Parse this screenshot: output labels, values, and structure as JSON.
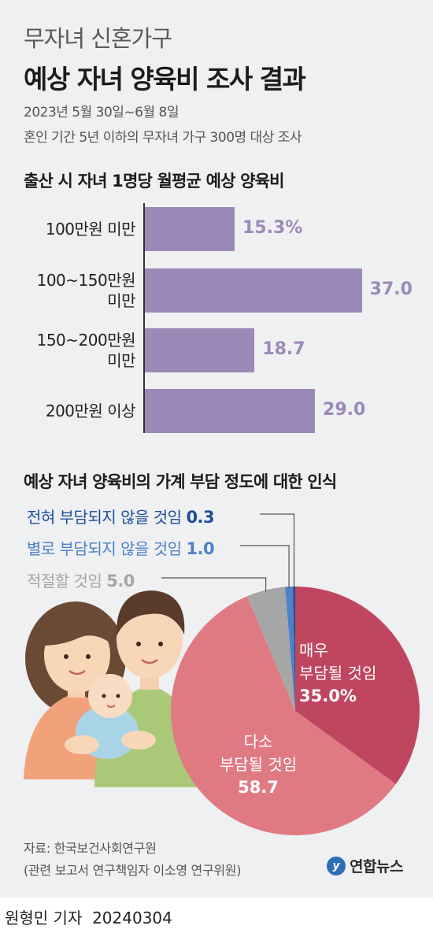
{
  "header": {
    "title_line1": "무자녀 신혼가구",
    "title_line2": "예상 자녀 양육비 조사 결과",
    "survey_period": "2023년 5월 30일~6월 8일",
    "survey_target": "혼인 기간 5년 이하의 무자녀 가구 300명 대상 조사"
  },
  "bar_section_title": "출산 시 자녀 1명당 월평균 예상 양육비",
  "pie_section_title": "예상 자녀 양육비의 가계 부담 정도에 대한 인식",
  "colors": {
    "bar": "#9c89b8",
    "pie_very": "#c0455e",
    "pie_some": "#e07a82",
    "pie_ok": "#a6a6a6",
    "pie_rarely": "#4f81c7",
    "pie_never": "#1f4e96",
    "background": "#eef0f2"
  },
  "chart_data": [
    {
      "type": "bar",
      "orientation": "horizontal",
      "title": "출산 시 자녀 1명당 월평균 예상 양육비",
      "categories": [
        [
          "100만원 미만"
        ],
        [
          "100~150만원",
          "미만"
        ],
        [
          "150~200만원",
          "미만"
        ],
        [
          "200만원 이상"
        ]
      ],
      "values": [
        15.3,
        37.0,
        18.7,
        29.0
      ],
      "value_labels": [
        "15.3%",
        "37.0",
        "18.7",
        "29.0"
      ],
      "unit": "%"
    },
    {
      "type": "pie",
      "title": "예상 자녀 양육비의 가계 부담 정도에 대한 인식",
      "slices": [
        {
          "label_lines": [
            "매우",
            "부담될 것임"
          ],
          "value": 35.0,
          "value_label": "35.0%"
        },
        {
          "label_lines": [
            "다소",
            "부담될 것임"
          ],
          "value": 58.7,
          "value_label": "58.7"
        },
        {
          "label": "적절할 것임",
          "value": 5.0,
          "value_label": "5.0"
        },
        {
          "label": "별로 부담되지 않을 것임",
          "value": 1.0,
          "value_label": "1.0"
        },
        {
          "label": "전혀 부담되지 않을 것임",
          "value": 0.3,
          "value_label": "0.3"
        }
      ]
    }
  ],
  "illustration": {
    "description_icon": "family-illustration"
  },
  "source": {
    "line1": "자료: 한국보건사회연구원",
    "line2": "(관련 보고서 연구책임자 이소영 연구위원)"
  },
  "logo_text": "연합뉴스",
  "logo_icon": "yonhap-logo",
  "credit": {
    "reporter": "원형민 기자",
    "date": "20240304"
  }
}
